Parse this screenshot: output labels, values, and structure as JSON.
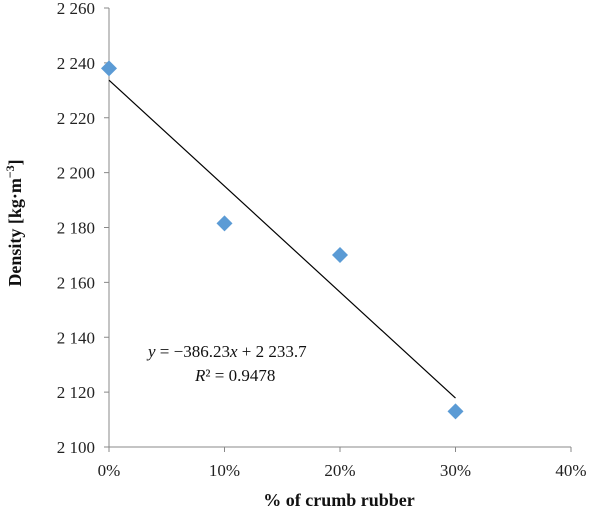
{
  "chart_data": {
    "type": "scatter",
    "xlabel": "% of crumb rubber",
    "ylabel": "Density [kg·m⁻³]",
    "x_tick_labels": [
      "0%",
      "10%",
      "20%",
      "30%",
      "40%"
    ],
    "y_tick_labels": [
      "2 100",
      "2 120",
      "2 140",
      "2 160",
      "2 180",
      "2 200",
      "2 220",
      "2 240",
      "2 260"
    ],
    "xlim": [
      0,
      0.4
    ],
    "ylim": [
      2100,
      2260
    ],
    "grid": false,
    "series": [
      {
        "x": [
          0,
          0.1,
          0.2,
          0.3
        ],
        "y": [
          2238,
          2181.5,
          2170,
          2113
        ],
        "marker": "diamond",
        "color": "#5B9BD5"
      }
    ],
    "trendline": {
      "slope": -386.23,
      "intercept": 2233.7,
      "x_range": [
        0,
        0.3
      ],
      "color": "#000000"
    },
    "annotations": {
      "equation": "y = −386.23x + 2 233.7",
      "r_squared": "R² = 0.9478"
    }
  }
}
